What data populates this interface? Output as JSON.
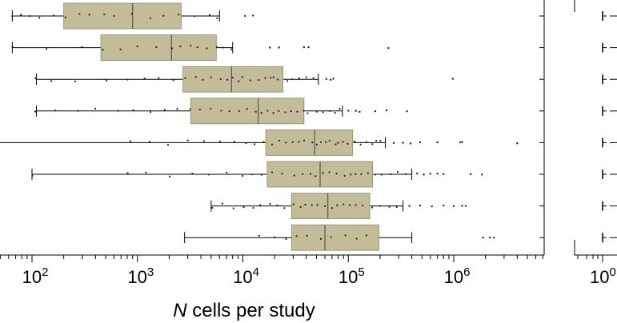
{
  "chart_data": {
    "type": "box",
    "xlabel_italic": "N",
    "xlabel_rest": " cells per study",
    "xscale": "log",
    "xlim": [
      48,
      5000000
    ],
    "tick_labels": [
      "10",
      "10",
      "10",
      "10",
      "10"
    ],
    "tick_exponents": [
      "2",
      "3",
      "4",
      "5",
      "6"
    ],
    "tick_values": [
      100,
      1000,
      10000,
      100000,
      1000000
    ],
    "right_panel_tick_label": "10",
    "right_panel_tick_exponent": "0",
    "colors": {
      "box_fill": "#c2bc98",
      "box_stroke": "#8f8a6b",
      "points": "#222222",
      "axis": "#000000"
    },
    "series": [
      {
        "whisker_low": 65,
        "q1": 200,
        "median": 900,
        "q3": 2600,
        "whisker_high": 6000,
        "outliers": [
          10500,
          12500
        ],
        "points": [
          65,
          80,
          95,
          120,
          160,
          210,
          280,
          350,
          480,
          600,
          900,
          1300,
          1800,
          2400,
          3500,
          4800,
          5800
        ]
      },
      {
        "whisker_low": 65,
        "q1": 450,
        "median": 2100,
        "q3": 5600,
        "whisker_high": 8000,
        "outliers": [
          18000,
          22000,
          38000,
          42000,
          240000
        ],
        "points": [
          65,
          140,
          300,
          480,
          700,
          1000,
          1500,
          2100,
          2600,
          3200,
          3800,
          4500,
          5500,
          6500,
          7800
        ]
      },
      {
        "whisker_low": 110,
        "q1": 2700,
        "median": 7800,
        "q3": 24000,
        "whisker_high": 52000,
        "outliers": [
          62000,
          68000,
          72000,
          980000
        ],
        "points": [
          110,
          150,
          250,
          500,
          800,
          1200,
          1600,
          2200,
          2800,
          3500,
          4200,
          5000,
          6000,
          7000,
          8000,
          9000,
          10000,
          12000,
          14000,
          16000,
          18000,
          20000,
          22000,
          26000,
          30000,
          35000,
          40000,
          47000
        ]
      },
      {
        "whisker_low": 110,
        "q1": 3200,
        "median": 14000,
        "q3": 38000,
        "whisker_high": 88000,
        "outliers": [
          100000,
          118000,
          128000,
          180000,
          230000,
          360000
        ],
        "points": [
          110,
          170,
          280,
          400,
          650,
          900,
          1300,
          1800,
          2400,
          3100,
          4000,
          5000,
          6200,
          7500,
          9000,
          11000,
          13000,
          15000,
          17000,
          19000,
          22000,
          25000,
          28000,
          32000,
          37000,
          42000,
          50000,
          58000,
          66000,
          75000,
          82000
        ]
      },
      {
        "whisker_low": 40,
        "q1": 16500,
        "median": 48000,
        "q3": 110000,
        "whisker_high": 225000,
        "outliers": [
          270000,
          330000,
          390000,
          480000,
          700000,
          1150000,
          1200000,
          4000000
        ],
        "points": [
          870,
          1300,
          2000,
          3000,
          4300,
          6000,
          8200,
          10500,
          13000,
          16000,
          19000,
          22000,
          26000,
          30000,
          34000,
          39000,
          45000,
          50000,
          56000,
          62000,
          68000,
          75000,
          82000,
          90000,
          100000,
          115000,
          130000,
          145000,
          165000,
          185000,
          205000
        ]
      },
      {
        "whisker_low": 100,
        "q1": 17000,
        "median": 54000,
        "q3": 170000,
        "whisker_high": 400000,
        "outliers": [
          450000,
          520000,
          600000,
          700000,
          800000,
          1450000,
          1850000
        ],
        "points": [
          100,
          800,
          1200,
          2000,
          3300,
          4800,
          7000,
          10000,
          12000,
          15000,
          19000,
          24000,
          30000,
          36000,
          43000,
          50000,
          58000,
          67000,
          78000,
          90000,
          105000,
          120000,
          135000,
          155000,
          180000,
          210000,
          250000,
          300000,
          350000
        ]
      },
      {
        "whisker_low": 5000,
        "q1": 29000,
        "median": 64000,
        "q3": 160000,
        "whisker_high": 330000,
        "outliers": [
          380000,
          480000,
          620000,
          800000,
          1000000,
          1200000,
          1300000
        ],
        "points": [
          5000,
          6500,
          8000,
          10000,
          12500,
          15000,
          18000,
          21000,
          25000,
          30000,
          35000,
          40000,
          46000,
          52000,
          60000,
          70000,
          80000,
          92000,
          105000,
          120000,
          140000,
          170000,
          200000,
          240000,
          290000
        ]
      },
      {
        "whisker_low": 2800,
        "q1": 29000,
        "median": 60000,
        "q3": 195000,
        "whisker_high": 400000,
        "outliers": [
          1900000,
          2200000,
          2400000
        ],
        "points": [
          14000,
          20000,
          26000,
          32000,
          40000,
          55000,
          70000,
          95000,
          120000,
          150000
        ]
      }
    ]
  }
}
